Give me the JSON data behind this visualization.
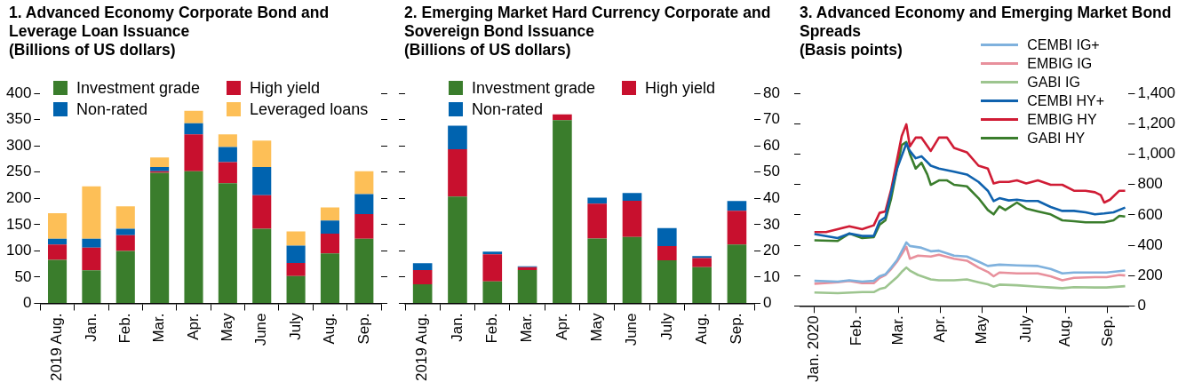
{
  "chart_data": [
    {
      "type": "bar",
      "title": "1. Advanced Economy Corporate Bond and Leverage Loan Issuance",
      "subtitle": "(Billions of US dollars)",
      "categories": [
        "2019 Aug.",
        "Jan.",
        "Feb.",
        "Mar.",
        "Apr.",
        "May",
        "June",
        "July",
        "Aug.",
        "Sep."
      ],
      "stacked": true,
      "legend": "top",
      "ylim": [
        0,
        400
      ],
      "yticks": [
        0,
        50,
        100,
        150,
        200,
        250,
        300,
        350,
        400
      ],
      "series": [
        {
          "name": "Investment grade",
          "color": "#3a7d2c",
          "values": [
            83,
            63,
            100,
            249,
            252,
            229,
            142,
            52,
            95,
            123
          ]
        },
        {
          "name": "High yield",
          "color": "#c8102e",
          "values": [
            29,
            43,
            30,
            3,
            70,
            40,
            64,
            25,
            38,
            47
          ]
        },
        {
          "name": "Non-rated",
          "color": "#0063af",
          "values": [
            11,
            17,
            12,
            8,
            21,
            29,
            54,
            33,
            25,
            38
          ]
        },
        {
          "name": "Leveraged loans",
          "color": "#fdbf57",
          "values": [
            49,
            100,
            43,
            18,
            24,
            24,
            50,
            27,
            25,
            44
          ]
        }
      ]
    },
    {
      "type": "bar",
      "title": "2. Emerging Market Hard Currency Corporate and Sovereign Bond Issuance",
      "subtitle": "(Billions of US dollars)",
      "categories": [
        "2019 Aug.",
        "Jan.",
        "Feb.",
        "Mar.",
        "Apr.",
        "May",
        "June",
        "July",
        "Aug.",
        "Sep."
      ],
      "stacked": true,
      "legend": "top",
      "y2lim": [
        0,
        80
      ],
      "y2ticks": [
        0,
        10,
        20,
        30,
        40,
        50,
        60,
        70,
        80
      ],
      "series": [
        {
          "name": "Investment grade",
          "color": "#3a7d2c",
          "axis": "y2",
          "values": [
            7.3,
            40.7,
            8.4,
            12.7,
            69.8,
            24.7,
            25.3,
            16.4,
            13.8,
            22.4
          ]
        },
        {
          "name": "High yield",
          "color": "#c8102e",
          "axis": "y2",
          "values": [
            5.4,
            18,
            10.3,
            1.1,
            2.2,
            13.3,
            13.8,
            5.4,
            3.5,
            12.9
          ]
        },
        {
          "name": "Non-rated",
          "color": "#0063af",
          "axis": "y2",
          "values": [
            2.6,
            9,
            1,
            0.3,
            0,
            2.3,
            3,
            6.9,
            0.7,
            3.7
          ]
        }
      ]
    },
    {
      "type": "line",
      "title": "3. Advanced Economy and Emerging Market Bond Spreads",
      "subtitle": "(Basis points)",
      "legend": "top right",
      "marker": "none",
      "xlim": [
        "2019-12-20",
        "2020-09-27"
      ],
      "xticks": [
        {
          "value": "2020-01-01",
          "label": "Jan. 2020"
        },
        {
          "value": "2020-02-06",
          "label": "Feb."
        },
        {
          "value": "2020-03-13",
          "label": "Mar."
        },
        {
          "value": "2020-04-18",
          "label": "Apr."
        },
        {
          "value": "2020-05-24",
          "label": "May"
        },
        {
          "value": "2020-07-01",
          "label": "July"
        },
        {
          "value": "2020-08-04",
          "label": "Aug."
        },
        {
          "value": "2020-09-09",
          "label": "Sep."
        }
      ],
      "y2lim": [
        0,
        1400
      ],
      "y2ticks": [
        0,
        200,
        400,
        600,
        800,
        {
          "value": 1000,
          "label": "1,000"
        },
        {
          "value": 1200,
          "label": "1,200"
        },
        {
          "value": 1400,
          "label": "1,400"
        }
      ],
      "series": [
        {
          "name": "CEMBI IG+",
          "color": "#7fb1dd",
          "axis": "y2",
          "x": [
            "2020-01-01",
            "2020-01-21",
            "2020-01-31",
            "2020-02-11",
            "2020-02-21",
            "2020-02-26",
            "2020-03-02",
            "2020-03-07",
            "2020-03-12",
            "2020-03-16",
            "2020-03-20",
            "2020-03-23",
            "2020-04-02",
            "2020-04-10",
            "2020-04-17",
            "2020-04-30",
            "2020-05-11",
            "2020-05-21",
            "2020-05-29",
            "2020-06-08",
            "2020-06-23",
            "2020-07-11",
            "2020-07-22",
            "2020-08-01",
            "2020-08-11",
            "2020-08-29",
            "2020-09-08",
            "2020-09-24"
          ],
          "values": [
            165,
            160,
            169,
            160,
            165,
            195,
            208,
            253,
            302,
            360,
            418,
            395,
            383,
            360,
            364,
            331,
            325,
            292,
            263,
            272,
            267,
            263,
            243,
            214,
            220,
            220,
            220,
            233
          ]
        },
        {
          "name": "EMBIG IG",
          "color": "#e8909c",
          "axis": "y2",
          "x": [
            "2020-01-01",
            "2020-01-21",
            "2020-01-31",
            "2020-02-11",
            "2020-02-21",
            "2020-02-26",
            "2020-03-02",
            "2020-03-07",
            "2020-03-12",
            "2020-03-16",
            "2020-03-20",
            "2020-03-23",
            "2020-03-30",
            "2020-04-10",
            "2020-04-17",
            "2020-04-30",
            "2020-05-11",
            "2020-05-21",
            "2020-05-29",
            "2020-06-03",
            "2020-06-08",
            "2020-06-23",
            "2020-07-11",
            "2020-07-22",
            "2020-08-01",
            "2020-08-11",
            "2020-08-29",
            "2020-09-08",
            "2020-09-19",
            "2020-09-24"
          ],
          "values": [
            146,
            156,
            165,
            150,
            150,
            185,
            204,
            243,
            292,
            340,
            389,
            311,
            331,
            325,
            337,
            311,
            298,
            253,
            224,
            195,
            220,
            214,
            214,
            195,
            169,
            185,
            189,
            189,
            204,
            200
          ]
        },
        {
          "name": "GABI IG",
          "color": "#9dc58f",
          "axis": "y2",
          "x": [
            "2020-01-01",
            "2020-01-21",
            "2020-02-11",
            "2020-02-21",
            "2020-02-26",
            "2020-03-02",
            "2020-03-07",
            "2020-03-12",
            "2020-03-16",
            "2020-03-20",
            "2020-03-23",
            "2020-03-30",
            "2020-04-10",
            "2020-04-17",
            "2020-04-30",
            "2020-05-11",
            "2020-05-21",
            "2020-05-29",
            "2020-06-03",
            "2020-06-08",
            "2020-06-23",
            "2020-07-11",
            "2020-07-22",
            "2020-08-01",
            "2020-08-11",
            "2020-08-29",
            "2020-09-08",
            "2020-09-24"
          ],
          "values": [
            88,
            84,
            91,
            91,
            111,
            121,
            156,
            189,
            224,
            253,
            233,
            204,
            175,
            169,
            169,
            175,
            156,
            142,
            126,
            140,
            136,
            126,
            121,
            117,
            123,
            121,
            121,
            130
          ]
        },
        {
          "name": "CEMBI HY+",
          "color": "#0f62ae",
          "axis": "y2",
          "x": [
            "2020-01-01",
            "2020-01-21",
            "2020-01-31",
            "2020-02-11",
            "2020-02-21",
            "2020-02-26",
            "2020-03-02",
            "2020-03-07",
            "2020-03-12",
            "2020-03-20",
            "2020-03-23",
            "2020-03-28",
            "2020-04-02",
            "2020-04-10",
            "2020-04-17",
            "2020-04-30",
            "2020-05-11",
            "2020-05-21",
            "2020-05-29",
            "2020-06-03",
            "2020-06-08",
            "2020-06-16",
            "2020-06-23",
            "2020-07-01",
            "2020-07-11",
            "2020-07-22",
            "2020-08-01",
            "2020-08-11",
            "2020-08-21",
            "2020-08-29",
            "2020-09-06",
            "2020-09-14",
            "2020-09-24"
          ],
          "values": [
            473,
            447,
            477,
            461,
            461,
            558,
            584,
            749,
            905,
            1070,
            1021,
            973,
            986,
            924,
            905,
            885,
            866,
            817,
            759,
            691,
            710,
            695,
            700,
            691,
            691,
            652,
            626,
            626,
            617,
            603,
            609,
            617,
            648
          ]
        },
        {
          "name": "EMBIG HY",
          "color": "#d01c35",
          "axis": "y2",
          "x": [
            "2020-01-01",
            "2020-01-11",
            "2020-01-21",
            "2020-01-31",
            "2020-02-11",
            "2020-02-21",
            "2020-02-26",
            "2020-03-02",
            "2020-03-07",
            "2020-03-12",
            "2020-03-16",
            "2020-03-20",
            "2020-03-23",
            "2020-03-28",
            "2020-04-02",
            "2020-04-10",
            "2020-04-17",
            "2020-04-24",
            "2020-04-30",
            "2020-05-11",
            "2020-05-21",
            "2020-05-29",
            "2020-06-03",
            "2020-06-08",
            "2020-06-16",
            "2020-06-23",
            "2020-07-01",
            "2020-07-11",
            "2020-07-22",
            "2020-08-01",
            "2020-08-11",
            "2020-08-21",
            "2020-08-29",
            "2020-09-03",
            "2020-09-06",
            "2020-09-11",
            "2020-09-19",
            "2020-09-24"
          ],
          "values": [
            486,
            486,
            506,
            525,
            506,
            531,
            613,
            623,
            768,
            963,
            1119,
            1197,
            1051,
            1109,
            1109,
            1021,
            1109,
            1109,
            1041,
            1012,
            924,
            905,
            807,
            817,
            817,
            827,
            807,
            827,
            798,
            798,
            759,
            759,
            749,
            730,
            681,
            700,
            759,
            759
          ]
        },
        {
          "name": "GABI HY",
          "color": "#3a7d2c",
          "axis": "y2",
          "x": [
            "2020-01-01",
            "2020-01-21",
            "2020-01-31",
            "2020-02-11",
            "2020-02-21",
            "2020-02-26",
            "2020-03-02",
            "2020-03-07",
            "2020-03-12",
            "2020-03-16",
            "2020-03-20",
            "2020-03-23",
            "2020-03-28",
            "2020-04-02",
            "2020-04-07",
            "2020-04-10",
            "2020-04-17",
            "2020-04-24",
            "2020-04-30",
            "2020-05-11",
            "2020-05-21",
            "2020-05-29",
            "2020-06-03",
            "2020-06-08",
            "2020-06-13",
            "2020-06-23",
            "2020-07-01",
            "2020-07-11",
            "2020-07-22",
            "2020-08-01",
            "2020-08-11",
            "2020-08-21",
            "2020-09-06",
            "2020-09-14",
            "2020-09-19",
            "2020-09-24"
          ],
          "values": [
            432,
            428,
            477,
            447,
            453,
            535,
            564,
            710,
            905,
            1060,
            1080,
            1002,
            905,
            944,
            866,
            798,
            827,
            827,
            798,
            788,
            710,
            632,
            603,
            656,
            632,
            681,
            642,
            623,
            603,
            564,
            558,
            551,
            551,
            564,
            593,
            589
          ]
        }
      ]
    }
  ]
}
